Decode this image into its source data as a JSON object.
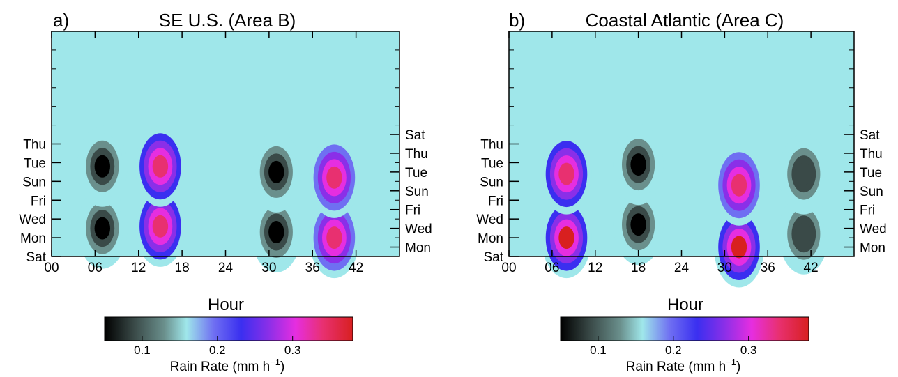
{
  "panels": [
    {
      "letter": "a)",
      "title": "SE U.S. (Area B)",
      "xlabel": "Hour",
      "x_ticks": [
        "00",
        "06",
        "12",
        "18",
        "24",
        "30",
        "36",
        "42"
      ],
      "left_day_labels": [
        "Thu",
        "Tue",
        "Sun",
        "Fri",
        "Wed",
        "Mon",
        "Sat"
      ],
      "right_day_labels": [
        "Sat",
        "Thu",
        "Tue",
        "Sun",
        "Fri",
        "Wed",
        "Mon"
      ],
      "colorbar_label": "Rain Rate (mm h",
      "colorbar_sup": "−1",
      "colorbar_close": ")",
      "colorbar_ticks": [
        "0.1",
        "0.2",
        "0.3"
      ]
    },
    {
      "letter": "b)",
      "title": "Coastal Atlantic (Area C)",
      "xlabel": "Hour",
      "x_ticks": [
        "00",
        "06",
        "12",
        "18",
        "24",
        "30",
        "36",
        "42"
      ],
      "left_day_labels": [
        "Thu",
        "Tue",
        "Sun",
        "Fri",
        "Wed",
        "Mon",
        "Sat"
      ],
      "right_day_labels": [
        "Sat",
        "Thu",
        "Tue",
        "Sun",
        "Fri",
        "Wed",
        "Mon"
      ],
      "colorbar_label": "Rain Rate (mm h",
      "colorbar_sup": "−1",
      "colorbar_close": ")",
      "colorbar_ticks": [
        "0.1",
        "0.2",
        "0.3"
      ]
    }
  ],
  "colors": {
    "scale": [
      "#000000",
      "#3a4a48",
      "#6a8f8c",
      "#9fe7ea",
      "#6f6ff2",
      "#3a2ff0",
      "#8a2fe8",
      "#e62ee0",
      "#e83070",
      "#d82020"
    ]
  },
  "chart_data": [
    {
      "type": "heatmap",
      "title": "SE U.S. (Area B)",
      "xlabel": "Hour",
      "ylabel": "",
      "xlim": [
        0,
        48
      ],
      "ylim": [
        0,
        12
      ],
      "x_ticks": [
        0,
        6,
        12,
        18,
        24,
        30,
        36,
        42
      ],
      "y_ticks_left": {
        "Sat": 0,
        "Mon": 1,
        "Wed": 2,
        "Fri": 3,
        "Sun": 4,
        "Tue": 5,
        "Thu": 6
      },
      "y_ticks_right": {
        "Mon": 0.5,
        "Wed": 1.5,
        "Fri": 2.5,
        "Sun": 3.5,
        "Tue": 4.5,
        "Thu": 5.5,
        "Sat": 6.5
      },
      "colorbar": {
        "label": "Rain Rate (mm h−1)",
        "ticks": [
          0.1,
          0.2,
          0.3
        ],
        "range": [
          0.05,
          0.38
        ]
      },
      "features": [
        {
          "kind": "max",
          "x": 15,
          "y": 1.6,
          "value": 0.36
        },
        {
          "kind": "max",
          "x": 15,
          "y": 4.8,
          "value": 0.36
        },
        {
          "kind": "max",
          "x": 39,
          "y": 1.0,
          "value": 0.35
        },
        {
          "kind": "max",
          "x": 39,
          "y": 4.2,
          "value": 0.34
        },
        {
          "kind": "min",
          "x": 7,
          "y": 1.5,
          "value": 0.06
        },
        {
          "kind": "min",
          "x": 7,
          "y": 4.8,
          "value": 0.06
        },
        {
          "kind": "min",
          "x": 31,
          "y": 1.3,
          "value": 0.06
        },
        {
          "kind": "min",
          "x": 31,
          "y": 4.5,
          "value": 0.06
        }
      ]
    },
    {
      "type": "heatmap",
      "title": "Coastal Atlantic (Area C)",
      "xlabel": "Hour",
      "ylabel": "",
      "xlim": [
        0,
        48
      ],
      "ylim": [
        0,
        12
      ],
      "x_ticks": [
        0,
        6,
        12,
        18,
        24,
        30,
        36,
        42
      ],
      "y_ticks_left": {
        "Sat": 0,
        "Mon": 1,
        "Wed": 2,
        "Fri": 3,
        "Sun": 4,
        "Tue": 5,
        "Thu": 6
      },
      "y_ticks_right": {
        "Mon": 0.5,
        "Wed": 1.5,
        "Fri": 2.5,
        "Sun": 3.5,
        "Tue": 4.5,
        "Thu": 5.5,
        "Sat": 6.5
      },
      "colorbar": {
        "label": "Rain Rate (mm h−1)",
        "ticks": [
          0.1,
          0.2,
          0.3
        ],
        "range": [
          0.05,
          0.38
        ]
      },
      "features": [
        {
          "kind": "max",
          "x": 8,
          "y": 1.0,
          "value": 0.37
        },
        {
          "kind": "max",
          "x": 8,
          "y": 4.4,
          "value": 0.36
        },
        {
          "kind": "max",
          "x": 32,
          "y": 0.5,
          "value": 0.37
        },
        {
          "kind": "max",
          "x": 32,
          "y": 3.8,
          "value": 0.35
        },
        {
          "kind": "min",
          "x": 18,
          "y": 1.7,
          "value": 0.06
        },
        {
          "kind": "min",
          "x": 18,
          "y": 4.9,
          "value": 0.06
        },
        {
          "kind": "min",
          "x": 41,
          "y": 1.2,
          "value": 0.07
        },
        {
          "kind": "min",
          "x": 41,
          "y": 4.4,
          "value": 0.07
        }
      ]
    }
  ]
}
